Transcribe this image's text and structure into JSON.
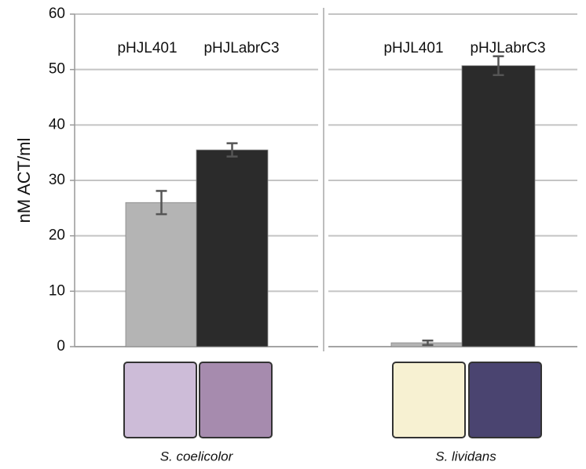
{
  "chart_data": [
    {
      "type": "bar",
      "ylabel": "nM ACT/ml",
      "xlabel": "S. coelicolor",
      "categories": [
        "pHJL401",
        "pHJLabrC3"
      ],
      "values": [
        26,
        35.5
      ],
      "errors": [
        2.1,
        1.2
      ],
      "colors": [
        "#b4b4b4",
        "#2b2b2b"
      ],
      "plate_colors": [
        "#cdbcd8",
        "#a68bae"
      ],
      "ylim": [
        0,
        60
      ],
      "yticks": [
        0,
        10,
        20,
        30,
        40,
        50,
        60
      ],
      "show_ytick_labels": true,
      "grid": true
    },
    {
      "type": "bar",
      "xlabel": "S. lividans",
      "categories": [
        "pHJL401",
        "pHJLabrC3"
      ],
      "values": [
        0.7,
        50.7
      ],
      "errors": [
        0.4,
        1.7
      ],
      "colors": [
        "#b4b4b4",
        "#2b2b2b"
      ],
      "plate_colors": [
        "#f7f1d2",
        "#4a4470"
      ],
      "ylim": [
        0,
        60
      ],
      "yticks": [
        0,
        10,
        20,
        30,
        40,
        50,
        60
      ],
      "show_ytick_labels": false,
      "grid": true
    }
  ]
}
